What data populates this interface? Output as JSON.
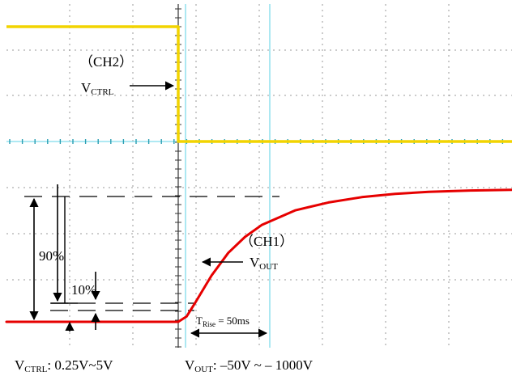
{
  "chart_data": {
    "type": "line",
    "title": "",
    "xlabel": "",
    "ylabel": "",
    "grid": true,
    "series": [
      {
        "name": "CH2",
        "color": "#f2d400",
        "x": [
          0,
          10,
          10,
          50
        ],
        "values": [
          1,
          1,
          0,
          0
        ]
      },
      {
        "name": "CH1",
        "color": "#e60000",
        "x": [
          0,
          10,
          11,
          12,
          14,
          16,
          18,
          20,
          24,
          28,
          32,
          36,
          40,
          45,
          50
        ],
        "values": [
          0,
          0,
          0.04,
          0.14,
          0.35,
          0.52,
          0.64,
          0.73,
          0.84,
          0.9,
          0.94,
          0.965,
          0.98,
          0.99,
          0.995
        ]
      }
    ]
  },
  "labels": {
    "ch2_name": "（CH2）",
    "vctrl_v": "V",
    "vctrl_sub": "CTRL",
    "ch1_name": "（CH1）",
    "vout_v": "V",
    "vout_sub": "OUT",
    "pct90": "90%",
    "pct10": "10%",
    "trise_t": "T",
    "trise_sub": "Rise",
    "trise_val": " = 50ms",
    "bottom_vctrl_v": "V",
    "bottom_vctrl_sub": "CTRL",
    "bottom_vctrl_val": ": 0.25V~5V",
    "bottom_vout_v": "V",
    "bottom_vout_sub": "OUT",
    "bottom_vout_val": ": –50V ~ – 1000V"
  },
  "colors": {
    "ch2": "#f2d400",
    "ch1": "#e60000",
    "cursor": "#7fdcec",
    "grid": "#9a9a9a",
    "axis": "#000000"
  }
}
